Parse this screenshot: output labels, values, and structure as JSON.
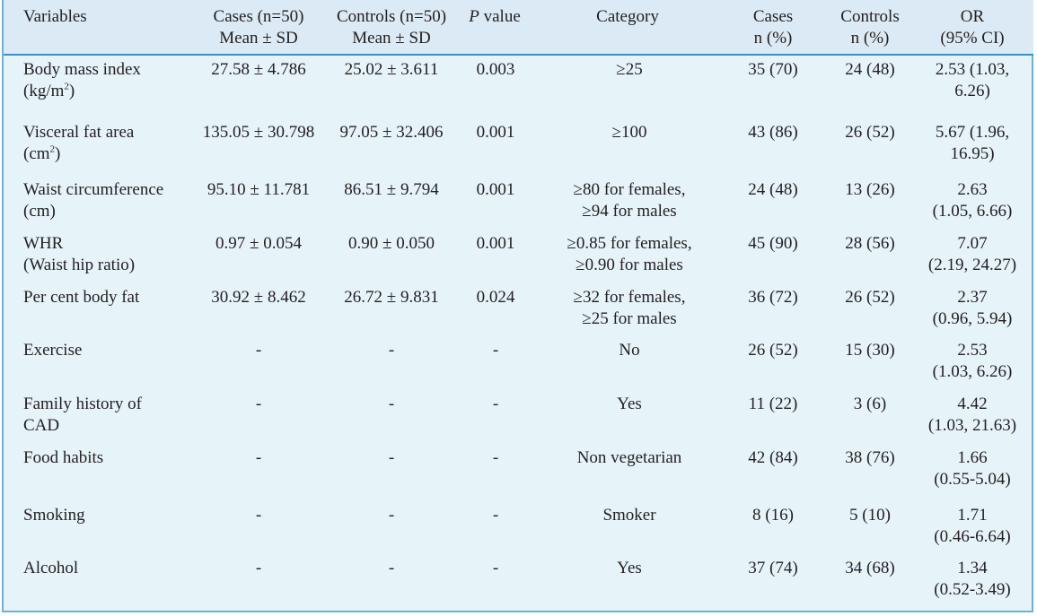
{
  "table": {
    "headers": {
      "variables": "Variables",
      "cases_mean_l1": "Cases (n=50)",
      "cases_mean_l2": "Mean ± SD",
      "controls_mean_l1": "Controls (n=50)",
      "controls_mean_l2": "Mean ± SD",
      "p_italic": "P",
      "p_rest": " value",
      "category": "Category",
      "cases_n_l1": "Cases",
      "cases_n_l2": "n (%)",
      "controls_n_l1": "Controls",
      "controls_n_l2": "n (%)",
      "or_l1": "OR",
      "or_l2": "(95% CI)"
    },
    "rows": [
      {
        "var_l1": "Body mass index",
        "var_l2a": "(kg/m",
        "var_sup": "2",
        "var_l2b": ")",
        "cases_mean": "27.58 ± 4.786",
        "controls_mean": "25.02 ± 3.611",
        "p": "0.003",
        "cat_l1": "≥25",
        "cat_l2": "",
        "cases_n": "35 (70)",
        "controls_n": "24 (48)",
        "or_l1": "2.53 (1.03,",
        "or_l2": "6.26)"
      },
      {
        "var_l1": "Visceral fat area",
        "var_l2a": "(cm",
        "var_sup": "2",
        "var_l2b": ")",
        "cases_mean": "135.05 ± 30.798",
        "controls_mean": "97.05 ± 32.406",
        "p": "0.001",
        "cat_l1": "≥100",
        "cat_l2": "",
        "cases_n": "43 (86)",
        "controls_n": "26 (52)",
        "or_l1": "5.67 (1.96,",
        "or_l2": "16.95)"
      },
      {
        "var_l1": "Waist circumference",
        "var_l2a": "(cm)",
        "var_sup": "",
        "var_l2b": "",
        "cases_mean": "95.10 ± 11.781",
        "controls_mean": "86.51 ± 9.794",
        "p": "0.001",
        "cat_l1": "≥80 for females,",
        "cat_l2": "≥94 for males",
        "cases_n": "24 (48)",
        "controls_n": "13 (26)",
        "or_l1": "2.63",
        "or_l2": "(1.05, 6.66)"
      },
      {
        "var_l1": "WHR",
        "var_l2a": "(Waist hip ratio)",
        "var_sup": "",
        "var_l2b": "",
        "cases_mean": "0.97 ± 0.054",
        "controls_mean": "0.90 ± 0.050",
        "p": "0.001",
        "cat_l1": "≥0.85 for females,",
        "cat_l2": "≥0.90 for males",
        "cases_n": "45 (90)",
        "controls_n": "28 (56)",
        "or_l1": "7.07",
        "or_l2": "(2.19, 24.27)"
      },
      {
        "var_l1": "Per cent body fat",
        "var_l2a": "",
        "var_sup": "",
        "var_l2b": "",
        "cases_mean": "30.92 ± 8.462",
        "controls_mean": "26.72 ± 9.831",
        "p": "0.024",
        "cat_l1": "≥32 for females,",
        "cat_l2": "≥25 for males",
        "cases_n": "36 (72)",
        "controls_n": "26 (52)",
        "or_l1": "2.37",
        "or_l2": "(0.96, 5.94)"
      },
      {
        "var_l1": "Exercise",
        "var_l2a": "",
        "var_sup": "",
        "var_l2b": "",
        "cases_mean": "-",
        "controls_mean": "-",
        "p": "-",
        "cat_l1": "No",
        "cat_l2": "",
        "cases_n": "26 (52)",
        "controls_n": "15 (30)",
        "or_l1": "2.53",
        "or_l2": "(1.03, 6.26)"
      },
      {
        "var_l1": "Family history of",
        "var_l2a": "CAD",
        "var_sup": "",
        "var_l2b": "",
        "cases_mean": "-",
        "controls_mean": "-",
        "p": "-",
        "cat_l1": "Yes",
        "cat_l2": "",
        "cases_n": "11 (22)",
        "controls_n": "3 (6)",
        "or_l1": "4.42",
        "or_l2": "(1.03, 21.63)"
      },
      {
        "var_l1": "Food habits",
        "var_l2a": "",
        "var_sup": "",
        "var_l2b": "",
        "cases_mean": "-",
        "controls_mean": "-",
        "p": "-",
        "cat_l1": "Non vegetarian",
        "cat_l2": "",
        "cases_n": "42 (84)",
        "controls_n": "38 (76)",
        "or_l1": "1.66",
        "or_l2": "(0.55-5.04)"
      },
      {
        "var_l1": "Smoking",
        "var_l2a": "",
        "var_sup": "",
        "var_l2b": "",
        "cases_mean": "-",
        "controls_mean": "-",
        "p": "-",
        "cat_l1": "Smoker",
        "cat_l2": "",
        "cases_n": "8 (16)",
        "controls_n": "5 (10)",
        "or_l1": "1.71",
        "or_l2": "(0.46-6.64)"
      },
      {
        "var_l1": "Alcohol",
        "var_l2a": "",
        "var_sup": "",
        "var_l2b": "",
        "cases_mean": "-",
        "controls_mean": "-",
        "p": "-",
        "cat_l1": "Yes",
        "cat_l2": "",
        "cases_n": "37 (74)",
        "controls_n": "34 (68)",
        "or_l1": "1.34",
        "or_l2": "(0.52-3.49)"
      }
    ]
  }
}
